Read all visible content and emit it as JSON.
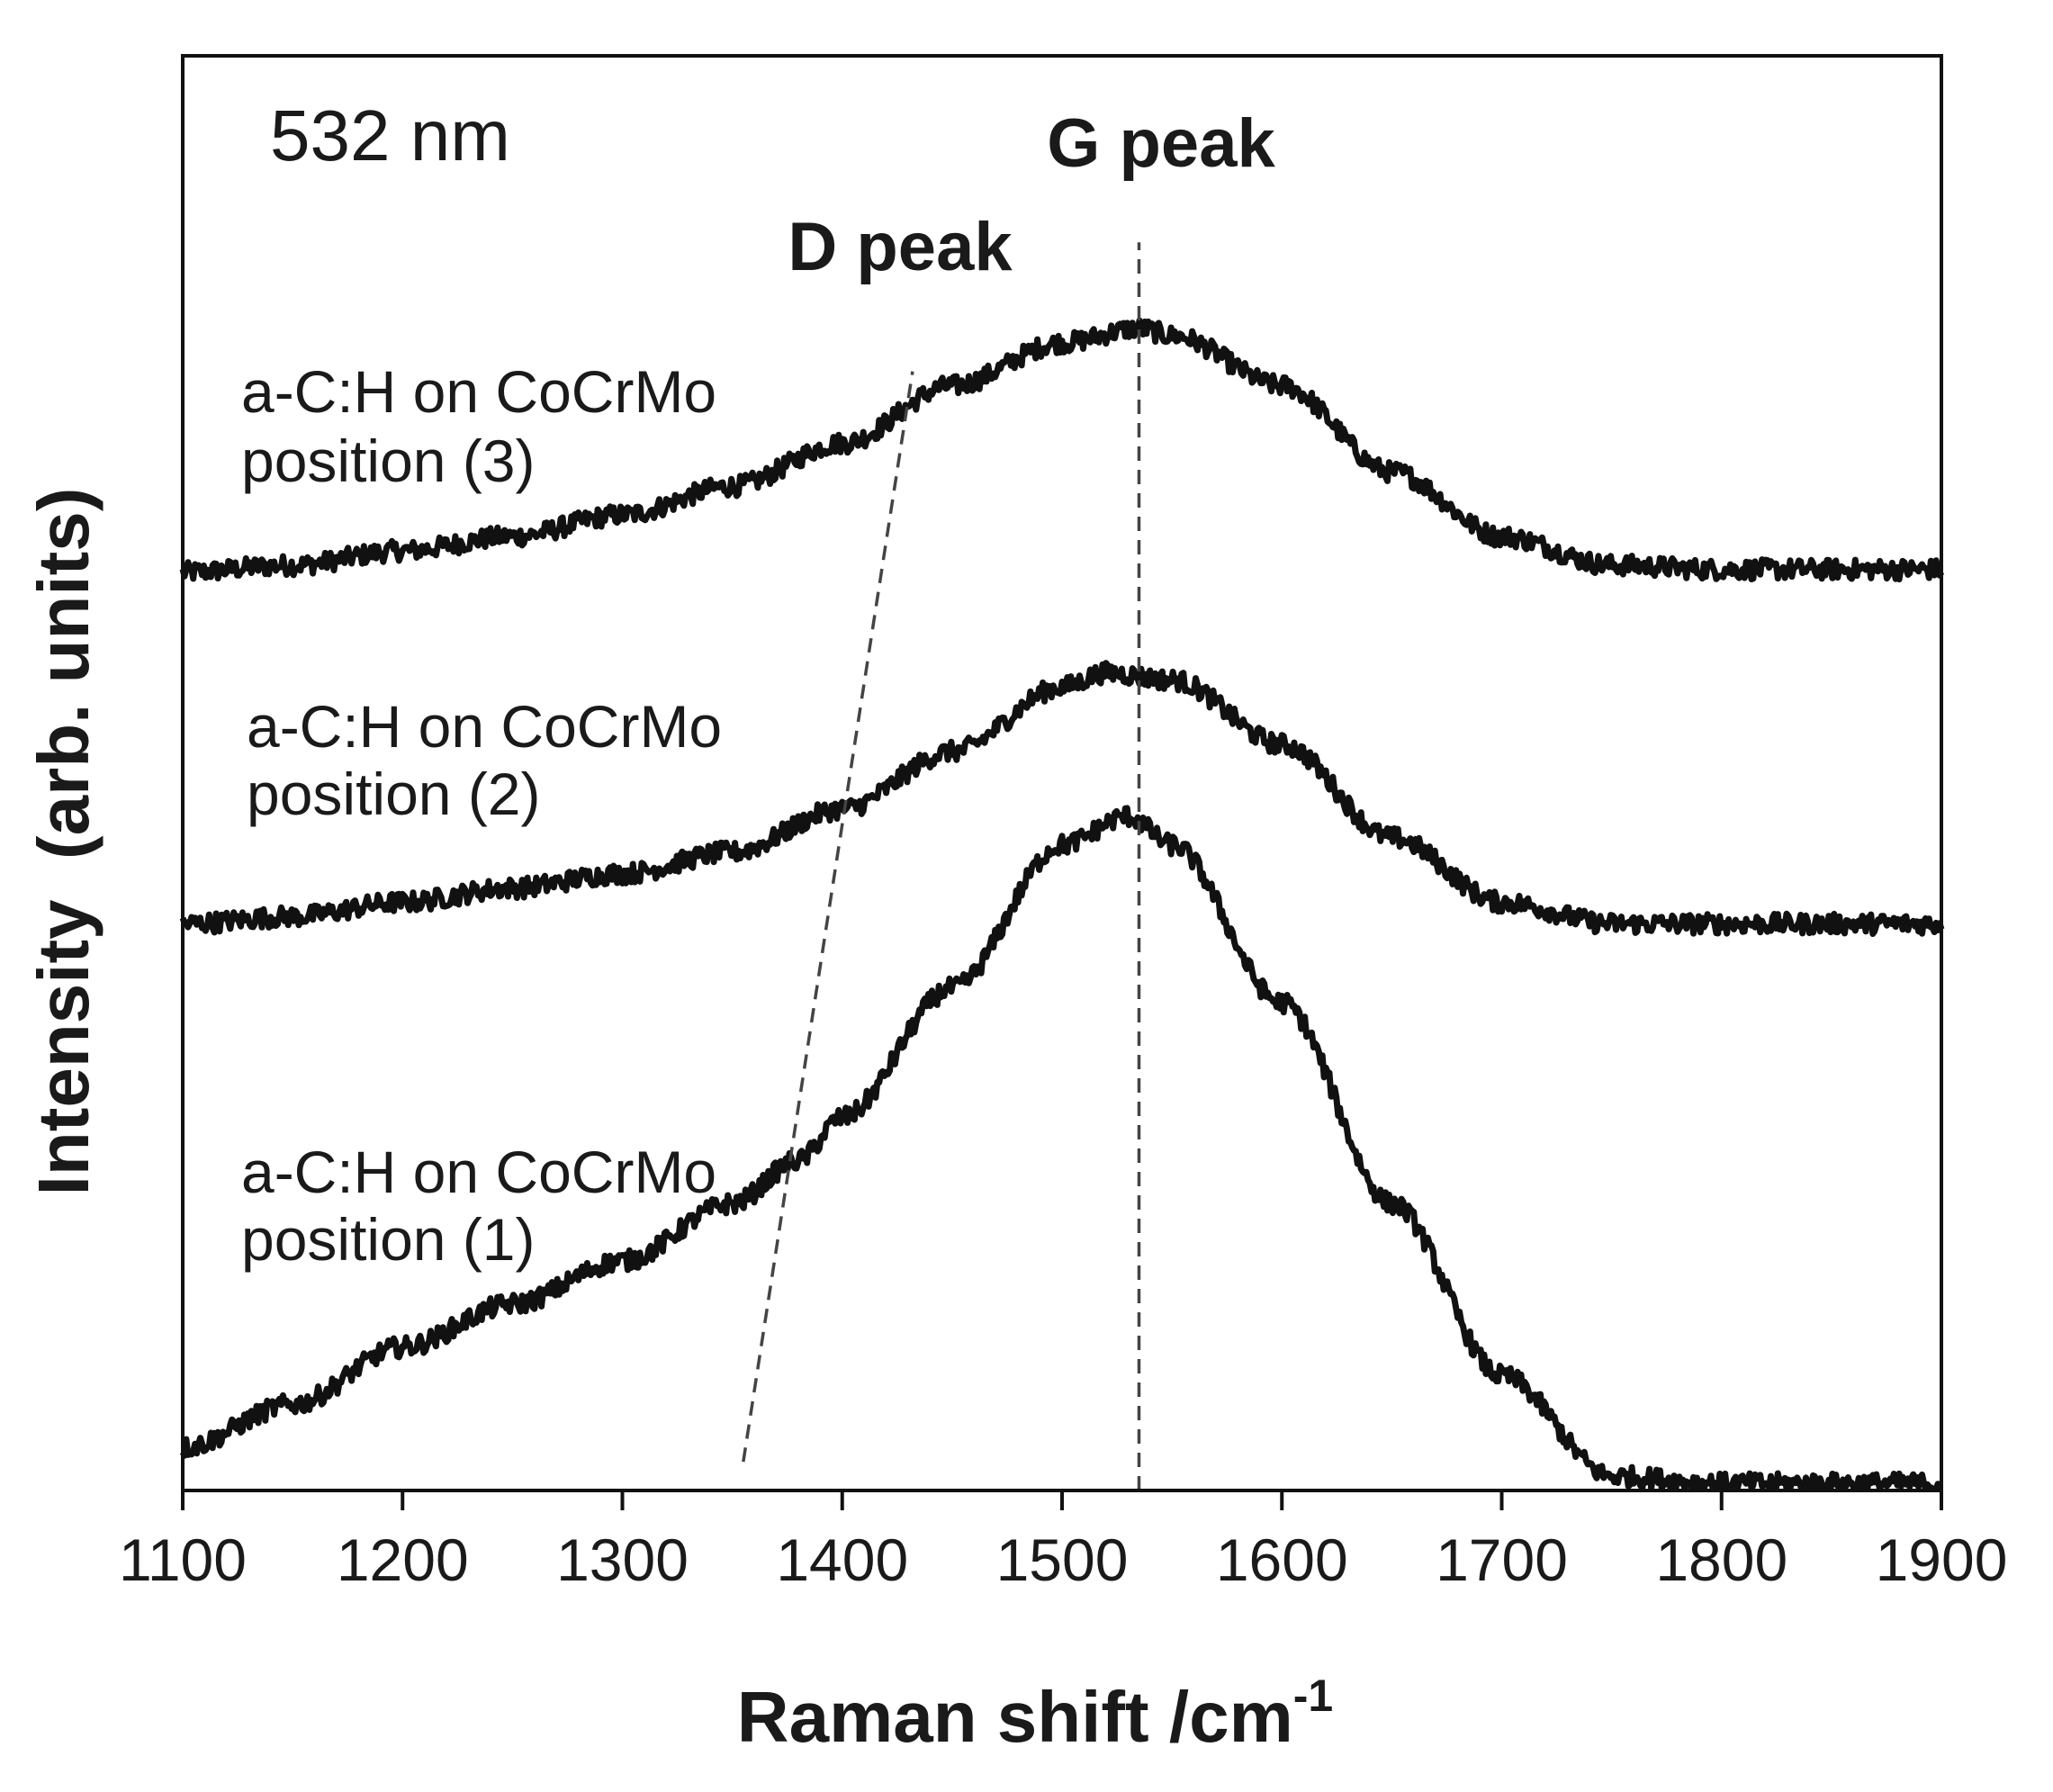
{
  "chart_data": {
    "type": "line",
    "annotation": "532 nm",
    "xlabel": "Raman shift /cm",
    "xlabel_superscript": "-1",
    "ylabel": "Intensity  (arb. units)",
    "xlim": [
      1100,
      1900
    ],
    "ylim": [
      0,
      1
    ],
    "xticks": [
      "1100",
      "1200",
      "1300",
      "1400",
      "1500",
      "1600",
      "1700",
      "1800",
      "1900"
    ],
    "yticks": [],
    "grid": false,
    "stacked_offsets": true,
    "series": [
      {
        "name": "a-C:H on CoCrMo position (3)",
        "label_line1": "a-C:H on CoCrMo",
        "label_line2": "position (3)",
        "x": [
          1100,
          1150,
          1200,
          1250,
          1300,
          1350,
          1400,
          1450,
          1500,
          1535,
          1550,
          1600,
          1650,
          1700,
          1750,
          1800,
          1850,
          1900
        ],
        "y": [
          0.64,
          0.645,
          0.655,
          0.665,
          0.68,
          0.7,
          0.73,
          0.77,
          0.8,
          0.81,
          0.805,
          0.77,
          0.71,
          0.665,
          0.645,
          0.642,
          0.642,
          0.642
        ]
      },
      {
        "name": "a-C:H on CoCrMo position (2)",
        "label_line1": "a-C:H on CoCrMo",
        "label_line2": "position (2)",
        "x": [
          1100,
          1150,
          1200,
          1250,
          1300,
          1350,
          1400,
          1450,
          1500,
          1520,
          1550,
          1600,
          1650,
          1700,
          1750,
          1800,
          1850,
          1900
        ],
        "y": [
          0.395,
          0.4,
          0.41,
          0.42,
          0.43,
          0.445,
          0.475,
          0.515,
          0.56,
          0.57,
          0.565,
          0.52,
          0.455,
          0.41,
          0.395,
          0.395,
          0.395,
          0.395
        ]
      },
      {
        "name": "a-C:H on CoCrMo position (1)",
        "label_line1": "a-C:H on CoCrMo",
        "label_line2": "position (1)",
        "x": [
          1100,
          1150,
          1200,
          1250,
          1300,
          1350,
          1380,
          1400,
          1450,
          1500,
          1530,
          1550,
          1600,
          1650,
          1700,
          1750,
          1800,
          1850,
          1900
        ],
        "y": [
          0.03,
          0.06,
          0.1,
          0.13,
          0.16,
          0.2,
          0.23,
          0.26,
          0.35,
          0.45,
          0.47,
          0.45,
          0.34,
          0.2,
          0.08,
          0.01,
          0.005,
          0.005,
          0.005
        ]
      }
    ],
    "reference_lines": [
      {
        "label": "G peak",
        "style": "dashed",
        "from": {
          "x": 1535,
          "y": 0
        },
        "to": {
          "x": 1535,
          "y": 0.87
        }
      },
      {
        "label": "D peak",
        "style": "dashed",
        "from": {
          "x": 1355,
          "y": 0.02
        },
        "to": {
          "x": 1432,
          "y": 0.78
        }
      }
    ]
  },
  "colors": {
    "line": "#111111",
    "dash": "#444444",
    "axis": "#111111",
    "background": "#ffffff"
  }
}
